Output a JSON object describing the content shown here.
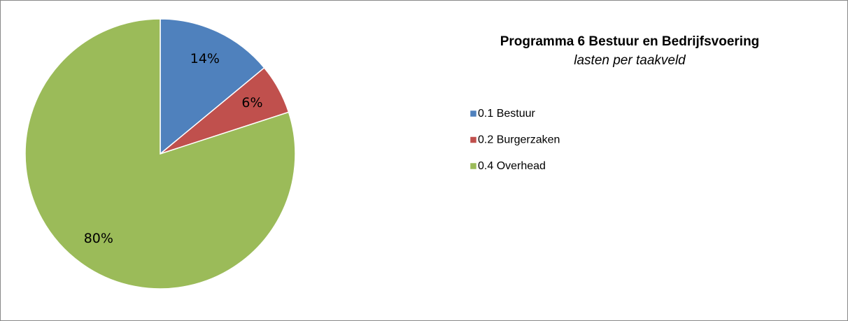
{
  "chart_data": {
    "type": "pie",
    "title": "Programma 6 Bestuur en Bedrijfsvoering",
    "subtitle": "lasten per taakveld",
    "categories": [
      "0.1 Bestuur",
      "0.2 Burgerzaken",
      "0.4 Overhead"
    ],
    "values": [
      14,
      6,
      80
    ],
    "value_labels": [
      "14%",
      "6%",
      "80%"
    ],
    "colors": [
      "#4f81bd",
      "#c0504d",
      "#9bbb59"
    ],
    "legend": "right"
  }
}
